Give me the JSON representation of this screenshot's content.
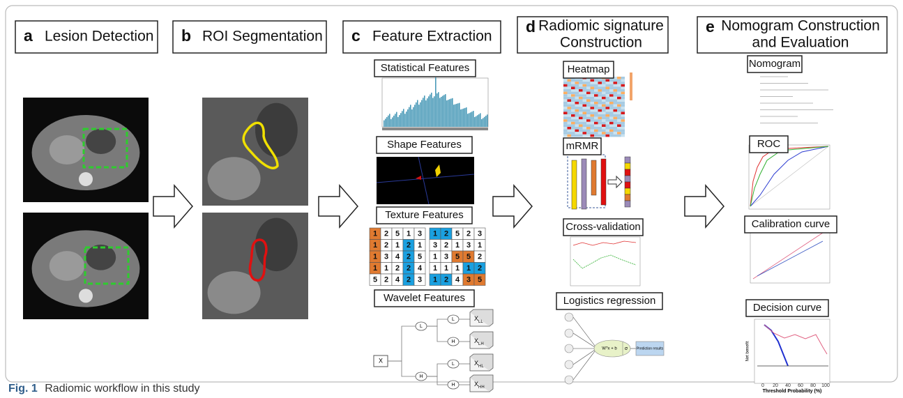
{
  "panels": [
    {
      "letter": "a",
      "title_lines": [
        "Lesion Detection"
      ]
    },
    {
      "letter": "b",
      "title_lines": [
        "ROI Segmentation"
      ]
    },
    {
      "letter": "c",
      "title_lines": [
        "Feature Extraction"
      ],
      "sections": [
        "Statistical Features",
        "Shape Features",
        "Texture Features",
        "Wavelet Features"
      ]
    },
    {
      "letter": "d",
      "title_lines": [
        "Radiomic signature",
        "Construction"
      ],
      "sections": [
        "Heatmap",
        "mRMR",
        "Cross-validation",
        "Logistics regression"
      ]
    },
    {
      "letter": "e",
      "title_lines": [
        "Nomogram Construction",
        "and Evaluation"
      ],
      "sections": [
        "Nomogram",
        "ROC",
        "Calibration curve",
        "Decision curve"
      ]
    }
  ],
  "texture": {
    "left": [
      [
        1,
        2,
        5,
        1,
        3
      ],
      [
        1,
        2,
        1,
        2,
        1
      ],
      [
        1,
        3,
        4,
        2,
        5
      ],
      [
        1,
        1,
        2,
        2,
        4
      ],
      [
        5,
        2,
        4,
        2,
        3
      ]
    ],
    "right": [
      [
        1,
        2,
        5,
        2,
        3
      ],
      [
        3,
        2,
        1,
        3,
        1
      ],
      [
        1,
        3,
        5,
        5,
        2
      ],
      [
        1,
        1,
        1,
        1,
        2
      ],
      [
        1,
        2,
        4,
        3,
        5
      ]
    ]
  },
  "wavelet": {
    "root": "X",
    "level1": [
      "L",
      "H"
    ],
    "level2": [
      "L",
      "H",
      "L",
      "H"
    ],
    "outputs": [
      {
        "base": "X",
        "sub": "LL"
      },
      {
        "base": "X",
        "sub": "LH"
      },
      {
        "base": "X",
        "sub": "HL"
      },
      {
        "base": "X",
        "sub": "HH"
      }
    ]
  },
  "logistic": {
    "formula": "Wᵀx + b",
    "activation": "σ",
    "output": "Prediction results"
  },
  "decision_curve": {
    "x_label": "Threshold Probability (%)",
    "xticks": [
      0,
      20,
      40,
      60,
      80,
      100
    ],
    "y_label": "Net benefit"
  },
  "caption": {
    "label": "Fig. 1",
    "text": "Radiomic workflow in this study"
  }
}
